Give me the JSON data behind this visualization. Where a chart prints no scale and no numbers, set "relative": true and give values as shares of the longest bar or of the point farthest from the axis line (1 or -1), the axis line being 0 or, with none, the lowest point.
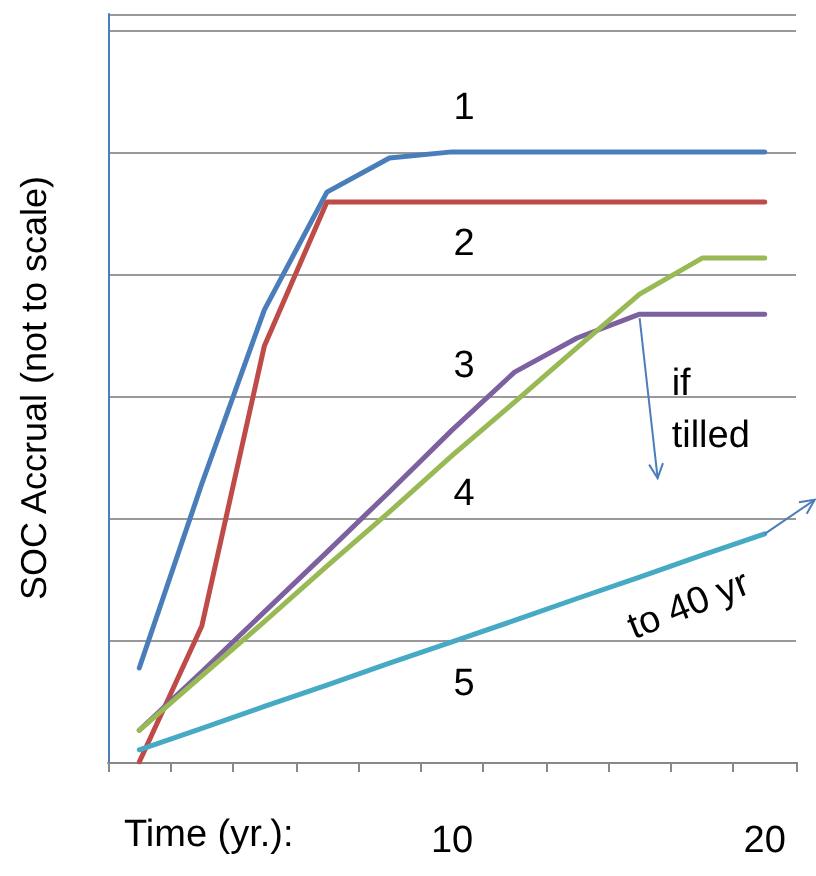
{
  "chart_data": {
    "type": "line",
    "relative": true,
    "ylabel": "SOC Accrual (not to scale)",
    "xlabel": "Time (yr.):",
    "categories": [
      null,
      null,
      null,
      null,
      null,
      "10",
      null,
      null,
      null,
      null,
      "20"
    ],
    "series": [
      {
        "name": "1",
        "color": "#4a7ebb",
        "values": [
          0.154,
          0.456,
          0.741,
          0.934,
          0.99,
          1,
          1,
          1,
          1,
          1,
          1
        ]
      },
      {
        "name": "2",
        "color": "#be4b48",
        "values": [
          0,
          0.223,
          0.682,
          0.918,
          0.918,
          0.918,
          0.918,
          0.918,
          0.918,
          0.918,
          0.918
        ]
      },
      {
        "name": "3",
        "color": "#7d60a0",
        "values": [
          0.052,
          0.148,
          0.246,
          0.344,
          0.443,
          0.544,
          0.639,
          0.695,
          0.734,
          0.734,
          0.734
        ]
      },
      {
        "name": "4",
        "color": "#98b954",
        "values": [
          0.052,
          0.141,
          0.23,
          0.321,
          0.41,
          0.502,
          0.59,
          0.679,
          0.767,
          0.826,
          0.826
        ]
      },
      {
        "name": "5",
        "color": "#46aac5",
        "values": [
          0.02,
          0.055,
          0.091,
          0.126,
          0.162,
          0.197,
          0.232,
          0.268,
          0.303,
          0.339,
          0.374
        ]
      }
    ],
    "annotations": [
      "if tilled",
      "to 40 yr"
    ],
    "grid": "y",
    "marker": "none",
    "line_style": "solid"
  }
}
